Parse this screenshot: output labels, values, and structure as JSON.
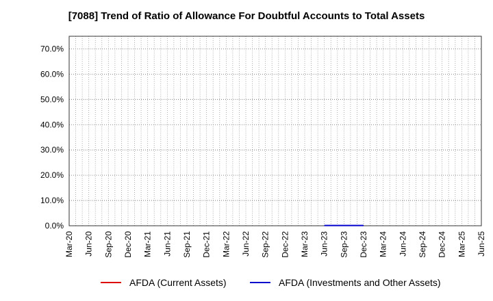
{
  "chart_data": {
    "type": "line",
    "title": "[7088]  Trend of Ratio of Allowance For Doubtful Accounts to Total Assets",
    "xlabel": "",
    "ylabel": "",
    "x_ticks": [
      "Mar-20",
      "Jun-20",
      "Sep-20",
      "Dec-20",
      "Mar-21",
      "Jun-21",
      "Sep-21",
      "Dec-21",
      "Mar-22",
      "Jun-22",
      "Sep-22",
      "Dec-22",
      "Mar-23",
      "Jun-23",
      "Sep-23",
      "Dec-23",
      "Mar-24",
      "Jun-24",
      "Sep-24",
      "Dec-24",
      "Mar-25",
      "Jun-25"
    ],
    "y_ticks": [
      "0.0%",
      "10.0%",
      "20.0%",
      "30.0%",
      "40.0%",
      "50.0%",
      "60.0%",
      "70.0%"
    ],
    "ylim": [
      0,
      75
    ],
    "grid": true,
    "legend_position": "bottom",
    "series": [
      {
        "name": "AFDA (Current Assets)",
        "color": "#dd0000",
        "x": [],
        "y": []
      },
      {
        "name": "AFDA (Investments and Other Assets)",
        "color": "#0000cc",
        "x": [
          "Jun-23",
          "Sep-23",
          "Dec-23"
        ],
        "y": [
          0.1,
          0.1,
          0.1
        ]
      }
    ]
  }
}
